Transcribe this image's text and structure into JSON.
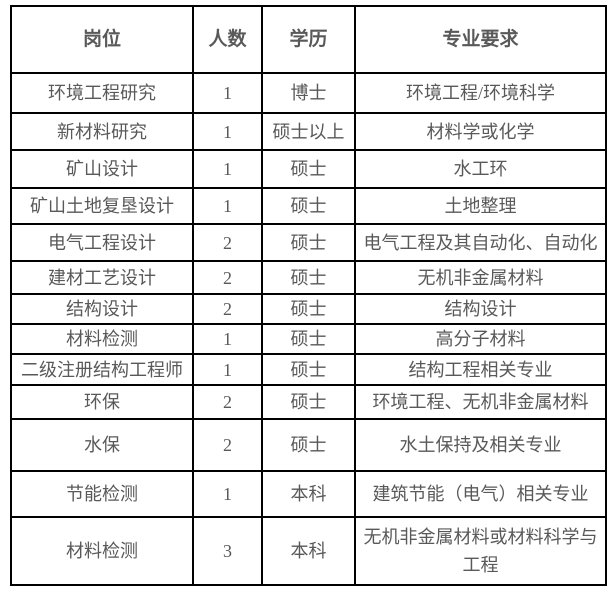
{
  "page": {
    "background_color": "#ffffff"
  },
  "table": {
    "border_color": "#000000",
    "text_color": "#595959",
    "headers": {
      "position": "岗位",
      "count": "人数",
      "degree": "学历",
      "major": "专业要求"
    },
    "rows": [
      {
        "position": "环境工程研究",
        "count": "1",
        "degree": "博士",
        "major": "环境工程/环境科学"
      },
      {
        "position": "新材料研究",
        "count": "1",
        "degree": "硕士以上",
        "major": "材料学或化学"
      },
      {
        "position": "矿山设计",
        "count": "1",
        "degree": "硕士",
        "major": "水工环"
      },
      {
        "position": "矿山土地复垦设计",
        "count": "1",
        "degree": "硕士",
        "major": "土地整理"
      },
      {
        "position": "电气工程设计",
        "count": "2",
        "degree": "硕士",
        "major": "电气工程及其自动化、自动化"
      },
      {
        "position": "建材工艺设计",
        "count": "2",
        "degree": "硕士",
        "major": "无机非金属材料"
      },
      {
        "position": "结构设计",
        "count": "2",
        "degree": "硕士",
        "major": "结构设计"
      },
      {
        "position": "材料检测",
        "count": "1",
        "degree": "硕士",
        "major": "高分子材料"
      },
      {
        "position": "二级注册结构工程师",
        "count": "1",
        "degree": "硕士",
        "major": "结构工程相关专业"
      },
      {
        "position": "环保",
        "count": "2",
        "degree": "硕士",
        "major": "环境工程、无机非金属材料"
      },
      {
        "position": "水保",
        "count": "2",
        "degree": "硕士",
        "major": "水土保持及相关专业"
      },
      {
        "position": "节能检测",
        "count": "1",
        "degree": "本科",
        "major": "建筑节能（电气）相关专业"
      },
      {
        "position": "材料检测",
        "count": "3",
        "degree": "本科",
        "major": "无机非金属材料或材料科学与工程"
      }
    ]
  }
}
